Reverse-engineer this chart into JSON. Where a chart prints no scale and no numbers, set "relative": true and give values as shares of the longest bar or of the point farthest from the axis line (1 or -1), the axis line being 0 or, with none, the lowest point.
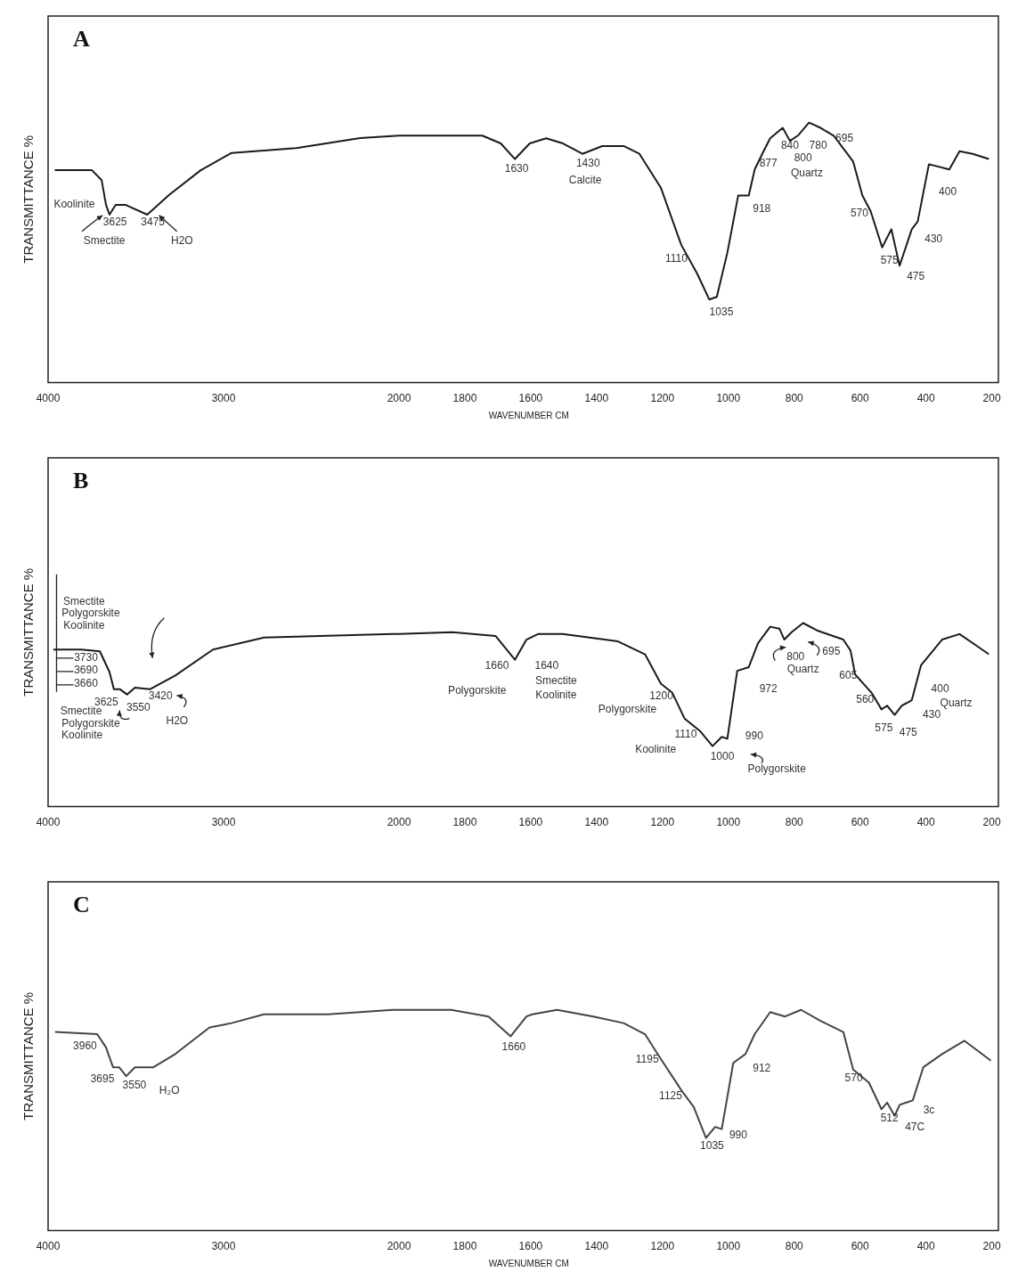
{
  "chart_data": [
    {
      "type": "line",
      "title": "A",
      "ylabel": "TRANSMITTANCE %",
      "relative": true,
      "xlim": [
        4000,
        2000
      ],
      "xticks": [
        4000,
        3000
      ],
      "series": [
        {
          "color": "#1a1a1a",
          "x": [
            3962,
            3750,
            3695,
            3670,
            3650,
            3615,
            3560,
            3435,
            3310,
            3130,
            2954,
            2585,
            2221,
            2000
          ],
          "values": [
            0.86,
            0.86,
            0.82,
            0.72,
            0.68,
            0.72,
            0.72,
            0.68,
            0.76,
            0.86,
            0.93,
            0.95,
            0.99,
            1.0
          ]
        }
      ],
      "annotations": [
        "Koolinite",
        "3625",
        "3475",
        "Smectite",
        "H2O"
      ]
    },
    {
      "type": "line",
      "xlabel": "WAVENUMBER CM",
      "relative": true,
      "xlim": [
        2000,
        180
      ],
      "xticks": [
        2000,
        1800,
        1600,
        1400,
        1200,
        1000,
        800,
        600,
        400,
        200
      ],
      "series": [
        {
          "color": "#1a1a1a",
          "x": [
            2000,
            1927,
            1747,
            1691,
            1648,
            1603,
            1553,
            1502,
            1443,
            1383,
            1318,
            1270,
            1205,
            1143,
            1095,
            1058,
            1035,
            1003,
            970,
            938,
            920,
            893,
            873,
            835,
            813,
            789,
            755,
            720,
            680,
            621,
            593,
            568,
            533,
            505,
            480,
            443,
            425,
            391,
            329,
            298,
            258,
            209
          ],
          "values": [
            0.95,
            0.95,
            0.95,
            0.92,
            0.86,
            0.92,
            0.94,
            0.92,
            0.88,
            0.91,
            0.91,
            0.88,
            0.75,
            0.53,
            0.42,
            0.32,
            0.33,
            0.5,
            0.72,
            0.72,
            0.82,
            0.89,
            0.94,
            0.98,
            0.93,
            0.95,
            1.0,
            0.98,
            0.95,
            0.85,
            0.72,
            0.66,
            0.52,
            0.59,
            0.45,
            0.59,
            0.62,
            0.84,
            0.82,
            0.89,
            0.88,
            0.86
          ]
        }
      ],
      "annotations": [
        "1630",
        "1430",
        "Calcite",
        "840",
        "877",
        "800",
        "780",
        "695",
        "Quartz",
        "918",
        "1110",
        "1035",
        "570",
        "575",
        "475",
        "430",
        "400"
      ]
    },
    {
      "type": "line",
      "title": "B",
      "ylabel": "TRANSMITTANCE %",
      "relative": true,
      "xlim": [
        4000,
        2000
      ],
      "xticks": [
        4000,
        3000
      ],
      "series": [
        {
          "color": "#1a1a1a",
          "x": [
            3970,
            3810,
            3705,
            3650,
            3625,
            3590,
            3550,
            3505,
            3420,
            3275,
            3060,
            2769,
            2405,
            2036,
            2000
          ],
          "values": [
            0.91,
            0.91,
            0.9,
            0.78,
            0.68,
            0.68,
            0.65,
            0.69,
            0.68,
            0.76,
            0.91,
            0.98,
            0.99,
            1.0,
            1.0
          ]
        }
      ],
      "annotations": [
        "Smectite",
        "Polygorskite",
        "Koolinite",
        "3730",
        "3690",
        "3660",
        "3625",
        "3550",
        "Smectite",
        "Polygorskite",
        "Koolinite",
        "3420",
        "H2O"
      ]
    },
    {
      "type": "line",
      "relative": true,
      "xlim": [
        2000,
        180
      ],
      "xticks": [
        2000,
        1800,
        1600,
        1400,
        1200,
        1000,
        800,
        600,
        400,
        200
      ],
      "series": [
        {
          "color": "#1a1a1a",
          "x": [
            2000,
            1840,
            1707,
            1648,
            1613,
            1578,
            1503,
            1335,
            1253,
            1205,
            1170,
            1133,
            1085,
            1048,
            1020,
            1003,
            973,
            938,
            910,
            873,
            845,
            830,
            808,
            773,
            731,
            651,
            629,
            615,
            565,
            535,
            518,
            495,
            473,
            443,
            415,
            351,
            298,
            249,
            209
          ],
          "values": [
            0.94,
            0.95,
            0.93,
            0.8,
            0.91,
            0.94,
            0.94,
            0.9,
            0.83,
            0.67,
            0.62,
            0.48,
            0.41,
            0.33,
            0.38,
            0.37,
            0.74,
            0.76,
            0.89,
            0.98,
            0.97,
            0.91,
            0.95,
            1.0,
            0.96,
            0.91,
            0.85,
            0.72,
            0.62,
            0.53,
            0.55,
            0.5,
            0.55,
            0.58,
            0.77,
            0.91,
            0.94,
            0.88,
            0.83
          ]
        }
      ],
      "annotations": [
        "1660",
        "Polygorskite",
        "1640",
        "Smectite",
        "Koolinite",
        "1200",
        "Polygorskite",
        "1110",
        "Koolinite",
        "1000",
        "990",
        "Polygorskite",
        "972",
        "800",
        "695",
        "Quartz",
        "605",
        "560",
        "575",
        "475",
        "430",
        "400",
        "Quartz"
      ]
    },
    {
      "type": "line",
      "title": "C",
      "ylabel": "TRANSMITTANCE %",
      "relative": true,
      "xlim": [
        4000,
        2000
      ],
      "xticks": [
        4000,
        3000
      ],
      "series": [
        {
          "color": "#444444",
          "x": [
            3960,
            3720,
            3670,
            3630,
            3595,
            3555,
            3505,
            3400,
            3275,
            3080,
            2954,
            2770,
            2405,
            2036,
            2000
          ],
          "values": [
            0.9,
            0.89,
            0.83,
            0.74,
            0.74,
            0.7,
            0.74,
            0.74,
            0.8,
            0.92,
            0.94,
            0.98,
            0.98,
            1.0,
            1.0
          ]
        }
      ],
      "annotations": [
        "3960",
        "3695",
        "3550",
        "H₂O"
      ]
    },
    {
      "type": "line",
      "xlabel": "WAVENUMBER CM",
      "relative": true,
      "xlim": [
        2000,
        180
      ],
      "xticks": [
        2000,
        1800,
        1600,
        1400,
        1200,
        1000,
        800,
        600,
        400,
        200
      ],
      "series": [
        {
          "color": "#444444",
          "x": [
            2000,
            1840,
            1728,
            1661,
            1613,
            1595,
            1520,
            1410,
            1318,
            1253,
            1215,
            1140,
            1105,
            1068,
            1040,
            1020,
            985,
            948,
            920,
            873,
            828,
            779,
            720,
            651,
            621,
            573,
            535,
            518,
            495,
            480,
            440,
            408,
            351,
            283,
            203
          ],
          "values": [
            1.0,
            1.0,
            0.97,
            0.88,
            0.97,
            0.98,
            1.0,
            0.97,
            0.94,
            0.89,
            0.8,
            0.63,
            0.56,
            0.42,
            0.47,
            0.46,
            0.76,
            0.8,
            0.89,
            0.99,
            0.97,
            1.0,
            0.95,
            0.9,
            0.73,
            0.67,
            0.55,
            0.58,
            0.52,
            0.57,
            0.59,
            0.74,
            0.8,
            0.86,
            0.77
          ]
        }
      ],
      "annotations": [
        "1660",
        "1195",
        "1125",
        "1035",
        "990",
        "912",
        "570",
        "512",
        "47C",
        "3c"
      ]
    }
  ]
}
